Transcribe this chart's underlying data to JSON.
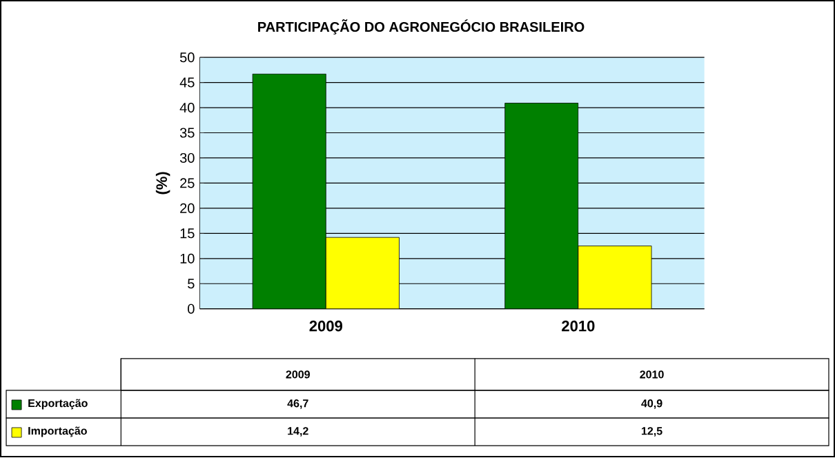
{
  "chart_data": {
    "type": "bar",
    "title": "PARTICIPAÇÃO DO AGRONEGÓCIO BRASILEIRO",
    "ylabel": "(%)",
    "categories": [
      "2009",
      "2010"
    ],
    "series": [
      {
        "name": "Exportação",
        "color": "#008000",
        "values": [
          46.7,
          40.9
        ],
        "value_labels": [
          "46,7",
          "40,9"
        ]
      },
      {
        "name": "Importação",
        "color": "#ffff00",
        "values": [
          14.2,
          12.5
        ],
        "value_labels": [
          "14,2",
          "12,5"
        ]
      }
    ],
    "ylim": [
      0,
      50
    ],
    "yticks": [
      0,
      5,
      10,
      15,
      20,
      25,
      30,
      35,
      40,
      45,
      50
    ],
    "grid": "y",
    "legend": "bottom"
  }
}
